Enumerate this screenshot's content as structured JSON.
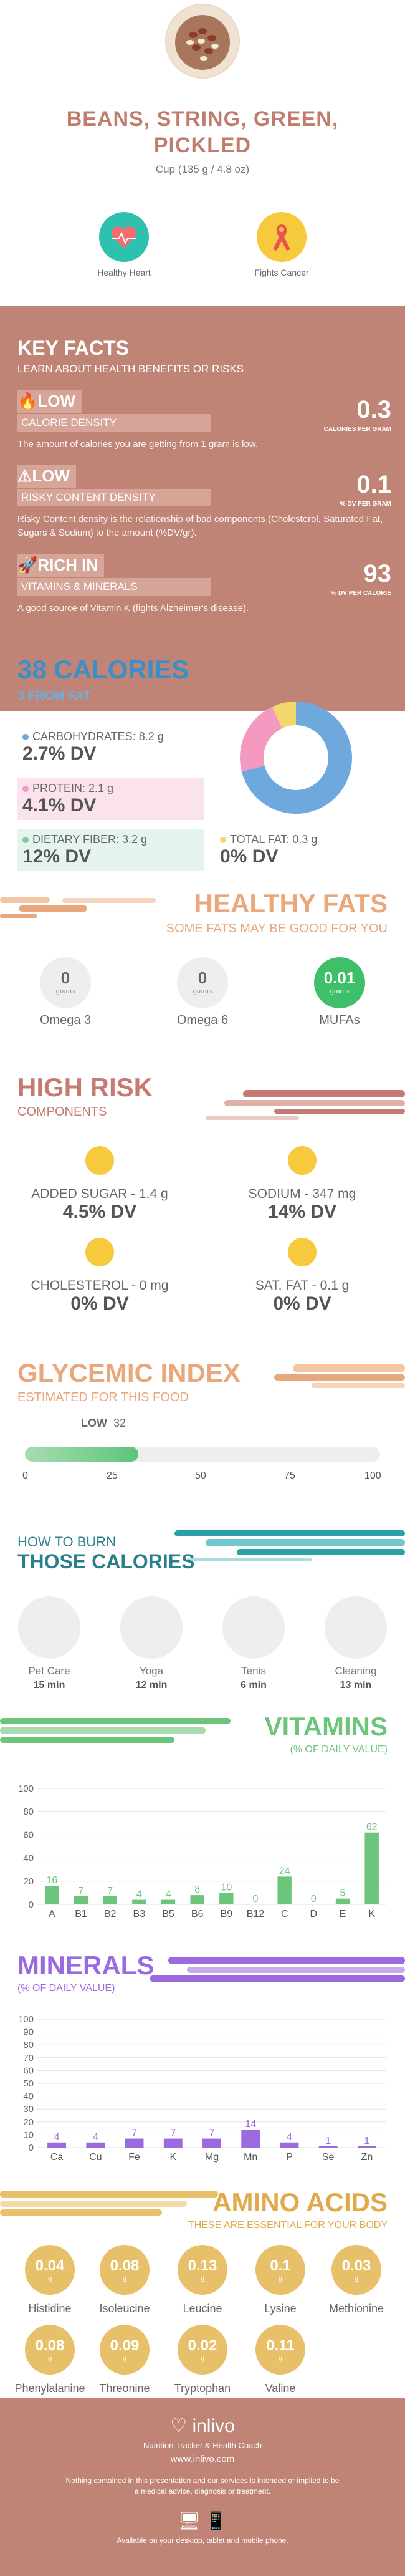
{
  "food": {
    "title_line1": "BEANS, STRING, GREEN,",
    "title_line2": "PICKLED",
    "serving": "Cup (135 g / 4.8 oz)"
  },
  "benefits": [
    {
      "label": "Healthy Heart",
      "icon": "heart-icon"
    },
    {
      "label": "Fights Cancer",
      "icon": "ribbon-icon"
    }
  ],
  "key_facts": {
    "title": "KEY FACTS",
    "subtitle": "LEARN ABOUT HEALTH BENEFITS OR RISKS",
    "facts": [
      {
        "level": "LOW",
        "label": "CALORIE DENSITY",
        "value": "0.3",
        "unit": "CALORIES PER GRAM",
        "desc": "The amount of calories you are getting from 1 gram is low."
      },
      {
        "level": "LOW",
        "label": "RISKY CONTENT DENSITY",
        "value": "0.1",
        "unit": "% DV PER GRAM",
        "desc": "Risky Content density is the relationship of bad components (Cholesterol, Saturated Fat, Sugars & Sodium) to the amount (%DV/gr)."
      },
      {
        "level": "RICH IN",
        "label": "VITAMINS & MINERALS",
        "value": "93",
        "unit": "% DV PER CALORIE",
        "desc": "A good source of Vitamin K (fights Alzheimer's disease)."
      }
    ]
  },
  "calories": {
    "title": "38 CALORIES",
    "subtitle": "3 FROM FAT",
    "nutrients": [
      {
        "label": "CARBOHYDRATES: 8.2 g",
        "dv": "2.7% DV",
        "color": "#6fa8dc"
      },
      {
        "label": "PROTEIN: 2.1 g",
        "dv": "4.1% DV",
        "color": "#f49ac1"
      },
      {
        "label": "DIETARY FIBER: 3.2 g",
        "dv": "12% DV",
        "color": "#7fc9a6"
      },
      {
        "label": "TOTAL FAT: 0.3 g",
        "dv": "0% DV",
        "color": "#f5d76e"
      }
    ],
    "donut": [
      {
        "name": "carbs",
        "value": 71,
        "color": "#6fa8dc"
      },
      {
        "name": "protein",
        "value": 22,
        "color": "#f49ac1"
      },
      {
        "name": "fat",
        "value": 7,
        "color": "#f5d76e"
      }
    ]
  },
  "healthy_fats": {
    "title": "HEALTHY FATS",
    "subtitle": "SOME FATS MAY BE GOOD FOR YOU",
    "items": [
      {
        "value": "0",
        "unit": "grams",
        "label": "Omega 3"
      },
      {
        "value": "0",
        "unit": "grams",
        "label": "Omega 6"
      },
      {
        "value": "0.01",
        "unit": "grams",
        "label": "MUFAs"
      }
    ]
  },
  "high_risk": {
    "title": "HIGH RISK",
    "subtitle": "COMPONENTS",
    "items": [
      {
        "label": "ADDED SUGAR - 1.4 g",
        "dv": "4.5% DV"
      },
      {
        "label": "SODIUM - 347 mg",
        "dv": "14% DV"
      },
      {
        "label": "CHOLESTEROL - 0 mg",
        "dv": "0% DV"
      },
      {
        "label": "SAT. FAT - 0.1 g",
        "dv": "0% DV"
      }
    ]
  },
  "glycemic": {
    "title": "GLYCEMIC INDEX",
    "subtitle": "ESTIMATED FOR THIS FOOD",
    "level": "LOW",
    "value": "32",
    "value_num": 32,
    "ticks": [
      "0",
      "25",
      "50",
      "75",
      "100"
    ]
  },
  "burn": {
    "title1": "HOW TO BURN",
    "title2": "THOSE CALORIES",
    "activities": [
      {
        "name": "Pet Care",
        "time": "15 min"
      },
      {
        "name": "Yoga",
        "time": "12 min"
      },
      {
        "name": "Tenis",
        "time": "6 min"
      },
      {
        "name": "Cleaning",
        "time": "13 min"
      }
    ]
  },
  "vitamins": {
    "title": "VITAMINS",
    "subtitle": "(% OF DAILY VALUE)",
    "color": "#6cc57b"
  },
  "minerals": {
    "title": "MINERALS",
    "subtitle": "(% OF DAILY VALUE)",
    "color": "#9b69e0"
  },
  "chart_data": [
    {
      "type": "bar",
      "title": "VITAMINS",
      "ylabel": "(% OF DAILY VALUE)",
      "ylim": [
        0,
        100
      ],
      "yticks": [
        "0",
        "20",
        "40",
        "60",
        "80",
        "100"
      ],
      "categories": [
        "A",
        "B1",
        "B2",
        "B3",
        "B5",
        "B6",
        "B9",
        "B12",
        "C",
        "D",
        "E",
        "K"
      ],
      "values": [
        16,
        7,
        7,
        4,
        4,
        8,
        10,
        0,
        24,
        0,
        5,
        62
      ]
    },
    {
      "type": "bar",
      "title": "MINERALS",
      "ylabel": "(% OF DAILY VALUE)",
      "ylim": [
        0,
        100
      ],
      "yticks": [
        "0",
        "10",
        "20",
        "30",
        "40",
        "50",
        "60",
        "70",
        "80",
        "90",
        "100"
      ],
      "categories": [
        "Ca",
        "Cu",
        "Fe",
        "K",
        "Mg",
        "Mn",
        "P",
        "Se",
        "Zn"
      ],
      "values": [
        4,
        4,
        7,
        7,
        7,
        14,
        4,
        1,
        1
      ]
    }
  ],
  "amino": {
    "title": "AMINO ACIDS",
    "subtitle": "THESE ARE ESSENTIAL FOR YOUR BODY",
    "unit": "g",
    "items": [
      {
        "value": "0.04",
        "label": "Histidine"
      },
      {
        "value": "0.08",
        "label": "Isoleucine"
      },
      {
        "value": "0.13",
        "label": "Leucine"
      },
      {
        "value": "0.1",
        "label": "Lysine"
      },
      {
        "value": "0.03",
        "label": "Methionine"
      },
      {
        "value": "0.08",
        "label": "Phenylalanine"
      },
      {
        "value": "0.09",
        "label": "Threonine"
      },
      {
        "value": "0.02",
        "label": "Tryptophan"
      },
      {
        "value": "0.11",
        "label": "Valine"
      }
    ]
  },
  "footer": {
    "brand": "inlivo",
    "tagline": "Nutrition Tracker & Health Coach",
    "url": "www.inlivo.com",
    "disclaimer": "Nothing contained in this presentation and our services is intended or implied to be a medical advice, diagnosis or treatment.",
    "available": "Available on your desktop, tablet and mobile phone."
  }
}
